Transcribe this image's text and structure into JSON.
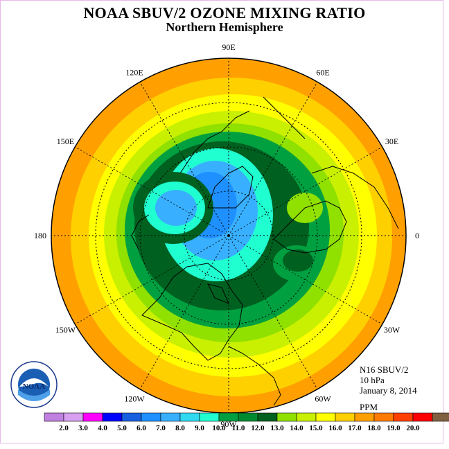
{
  "header": {
    "title": "NOAA SBUV/2 OZONE MIXING RATIO",
    "subtitle": "Northern Hemisphere"
  },
  "map": {
    "projection": "north polar stereographic",
    "longitude_labels": [
      {
        "text": "90E"
      },
      {
        "text": "60E"
      },
      {
        "text": "30E"
      },
      {
        "text": "0"
      },
      {
        "text": "30W"
      },
      {
        "text": "60W"
      },
      {
        "text": "90W"
      },
      {
        "text": "120W"
      },
      {
        "text": "150W"
      },
      {
        "text": "180"
      },
      {
        "text": "150E"
      },
      {
        "text": "120E"
      }
    ]
  },
  "info": {
    "instrument": "N16 SBUV/2",
    "level": "10 hPa",
    "date": "January 8, 2014",
    "units": "PPM"
  },
  "logo": {
    "text": "NOAA",
    "ring_text": "NATIONAL OCEANIC AND ATMOSPHERIC ADMINISTRATION · U.S. DEPARTMENT OF COMMERCE"
  },
  "colorbar": {
    "labels": [
      "2.0",
      "3.0",
      "4.0",
      "5.0",
      "6.0",
      "7.0",
      "8.0",
      "9.0",
      "10.0",
      "11.0",
      "12.0",
      "13.0",
      "14.0",
      "15.0",
      "16.0",
      "17.0",
      "18.0",
      "19.0",
      "20.0"
    ],
    "colors": [
      "#c080e0",
      "#d8a0f0",
      "#ff00ff",
      "#0000ff",
      "#1860e0",
      "#1e90ff",
      "#38b0ff",
      "#30d8f0",
      "#20ffd0",
      "#00a040",
      "#008a30",
      "#006020",
      "#90e000",
      "#c8f000",
      "#ffff00",
      "#ffd000",
      "#ffa000",
      "#ff7a00",
      "#ff4000",
      "#ff0000",
      "#806040"
    ]
  },
  "bands": {
    "colors": [
      "#ff7a00",
      "#ffa000",
      "#ffd000",
      "#ffff00",
      "#c8f000",
      "#90e000",
      "#00a040",
      "#006020",
      "#20ffd0",
      "#38b0ff",
      "#1e90ff"
    ]
  }
}
